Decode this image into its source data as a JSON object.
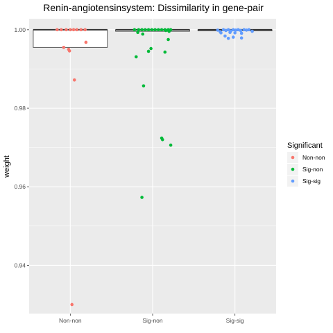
{
  "chart_data": {
    "type": "box+scatter",
    "title": "Renin-angiotensinsystem: Dissimilarity in gene-pair",
    "xlabel": "",
    "ylabel": "weight",
    "ylim": [
      0.9277,
      1.0028
    ],
    "yticks": [
      0.94,
      0.96,
      0.98,
      1.0
    ],
    "ytick_labels": [
      "0.94",
      "0.96",
      "0.98",
      "1.00"
    ],
    "categories": [
      "Non-non",
      "Sig-non",
      "Sig-sig"
    ],
    "grid": true,
    "legend": {
      "title": "Significant",
      "position": "right",
      "entries": [
        "Non-non",
        "Sig-non",
        "Sig-sig"
      ]
    },
    "colors": {
      "Non-non": "#f8766d",
      "Sig-non": "#00ba38",
      "Sig-sig": "#619cff",
      "panel_bg": "#ebebeb",
      "grid": "#ffffff"
    },
    "boxes": [
      {
        "category": "Non-non",
        "lower_whisker": 0.9955,
        "q1": 0.9955,
        "median": 1.0,
        "q3": 1.0,
        "upper_whisker": 1.0
      },
      {
        "category": "Sig-non",
        "lower_whisker": 0.9996,
        "q1": 0.9996,
        "median": 1.0,
        "q3": 1.0,
        "upper_whisker": 1.0
      },
      {
        "category": "Sig-sig",
        "lower_whisker": 0.9997,
        "q1": 0.9997,
        "median": 1.0,
        "q3": 1.0,
        "upper_whisker": 1.0
      }
    ],
    "series": [
      {
        "name": "Non-non",
        "points": [
          {
            "x": -0.16,
            "y": 1.0
          },
          {
            "x": -0.11,
            "y": 1.0
          },
          {
            "x": -0.05,
            "y": 1.0
          },
          {
            "x": 0.0,
            "y": 1.0
          },
          {
            "x": 0.04,
            "y": 1.0
          },
          {
            "x": 0.08,
            "y": 1.0
          },
          {
            "x": 0.13,
            "y": 1.0
          },
          {
            "x": 0.18,
            "y": 1.0
          },
          {
            "x": -0.08,
            "y": 0.9955
          },
          {
            "x": -0.02,
            "y": 0.995
          },
          {
            "x": -0.01,
            "y": 0.9946
          },
          {
            "x": 0.19,
            "y": 0.9968
          },
          {
            "x": 0.05,
            "y": 0.9872
          },
          {
            "x": 0.02,
            "y": 0.93
          }
        ]
      },
      {
        "name": "Sig-non",
        "points": [
          {
            "x": -0.22,
            "y": 1.0
          },
          {
            "x": -0.17,
            "y": 1.0
          },
          {
            "x": -0.13,
            "y": 1.0
          },
          {
            "x": -0.09,
            "y": 1.0
          },
          {
            "x": -0.05,
            "y": 1.0
          },
          {
            "x": -0.01,
            "y": 1.0
          },
          {
            "x": 0.03,
            "y": 1.0
          },
          {
            "x": 0.07,
            "y": 1.0
          },
          {
            "x": 0.11,
            "y": 1.0
          },
          {
            "x": 0.15,
            "y": 1.0
          },
          {
            "x": 0.19,
            "y": 1.0
          },
          {
            "x": 0.22,
            "y": 1.0
          },
          {
            "x": -0.18,
            "y": 0.9993
          },
          {
            "x": -0.12,
            "y": 0.9989
          },
          {
            "x": 0.16,
            "y": 0.9998
          },
          {
            "x": 0.2,
            "y": 0.9996
          },
          {
            "x": -0.02,
            "y": 0.9952
          },
          {
            "x": -0.05,
            "y": 0.9945
          },
          {
            "x": 0.15,
            "y": 0.9943
          },
          {
            "x": -0.2,
            "y": 0.9931
          },
          {
            "x": 0.19,
            "y": 0.9975
          },
          {
            "x": -0.11,
            "y": 0.9857
          },
          {
            "x": 0.11,
            "y": 0.9724
          },
          {
            "x": 0.12,
            "y": 0.972
          },
          {
            "x": 0.22,
            "y": 0.9706
          },
          {
            "x": -0.13,
            "y": 0.9573
          }
        ]
      },
      {
        "name": "Sig-sig",
        "points": [
          {
            "x": -0.21,
            "y": 0.9999
          },
          {
            "x": -0.18,
            "y": 0.9995
          },
          {
            "x": -0.14,
            "y": 1.0
          },
          {
            "x": -0.11,
            "y": 0.9998
          },
          {
            "x": -0.08,
            "y": 1.0
          },
          {
            "x": -0.05,
            "y": 0.9997
          },
          {
            "x": -0.02,
            "y": 1.0
          },
          {
            "x": 0.01,
            "y": 0.9999
          },
          {
            "x": 0.04,
            "y": 1.0
          },
          {
            "x": 0.07,
            "y": 0.9998
          },
          {
            "x": 0.11,
            "y": 1.0
          },
          {
            "x": 0.14,
            "y": 0.9999
          },
          {
            "x": 0.17,
            "y": 1.0
          },
          {
            "x": 0.21,
            "y": 0.9996
          },
          {
            "x": -0.17,
            "y": 0.9992
          },
          {
            "x": -0.06,
            "y": 0.9993
          },
          {
            "x": 0.0,
            "y": 0.9992
          },
          {
            "x": 0.08,
            "y": 0.9991
          },
          {
            "x": -0.12,
            "y": 0.9984
          },
          {
            "x": -0.08,
            "y": 0.9978
          },
          {
            "x": -0.02,
            "y": 0.9981
          },
          {
            "x": 0.08,
            "y": 0.9979
          }
        ]
      }
    ]
  }
}
